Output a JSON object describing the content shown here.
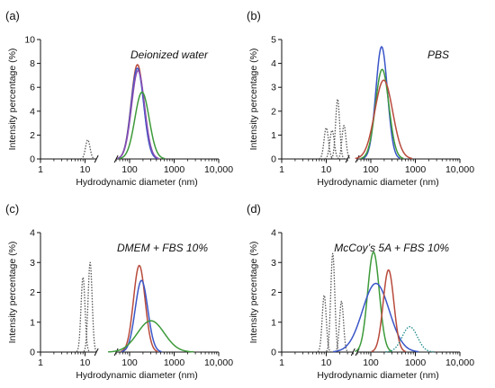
{
  "chart_data": [
    {
      "type": "line",
      "panel_label": "(a)",
      "title": "Deionized water",
      "xlabel": "Hydrodynamic diameter (nm)",
      "ylabel": "Intensity percentage (%)",
      "xscale": "log",
      "xlim": [
        1,
        10000
      ],
      "ylim": [
        0,
        10
      ],
      "xticks": [
        1,
        10,
        100,
        1000,
        10000
      ],
      "xtick_labels": [
        "1",
        "10",
        "100",
        "1000",
        "10,000"
      ],
      "yticks": [
        0,
        2,
        4,
        6,
        8,
        10
      ],
      "ytick_labels": [
        "0",
        "2",
        "4",
        "6",
        "8",
        "10"
      ],
      "broken_x_axis": true,
      "break_between": [
        18,
        50
      ],
      "series": [
        {
          "style": "dotted",
          "color": "#555555",
          "peak_x": 11.5,
          "peak_y": 1.6,
          "width": 0.05
        },
        {
          "style": "solid",
          "color": "#b84a3c",
          "peak_x": 150,
          "peak_y": 7.9,
          "width": 0.14
        },
        {
          "style": "solid",
          "color": "#3a56c8",
          "peak_x": 150,
          "peak_y": 7.6,
          "width": 0.14
        },
        {
          "style": "solid",
          "color": "#8a4fb3",
          "peak_x": 155,
          "peak_y": 7.4,
          "width": 0.145
        },
        {
          "style": "solid",
          "color": "#3d9a3a",
          "peak_x": 190,
          "peak_y": 5.6,
          "width": 0.16
        }
      ]
    },
    {
      "type": "line",
      "panel_label": "(b)",
      "title": "PBS",
      "xlabel": "Hydrodynamic diameter (nm)",
      "ylabel": "Intensity percentage (%)",
      "xscale": "log",
      "xlim": [
        1,
        10000
      ],
      "ylim": [
        0,
        5
      ],
      "xticks": [
        1,
        10,
        100,
        1000,
        10000
      ],
      "xtick_labels": [
        "1",
        "10",
        "100",
        "1000",
        "10,000"
      ],
      "yticks": [
        0,
        1,
        2,
        3,
        4,
        5
      ],
      "ytick_labels": [
        "0",
        "1",
        "2",
        "3",
        "4",
        "5"
      ],
      "broken_x_axis": true,
      "break_between": [
        30,
        50
      ],
      "series": [
        {
          "style": "dotted",
          "color": "#555555",
          "peak_x": 10,
          "peak_y": 1.3,
          "width": 0.05
        },
        {
          "style": "dotted",
          "color": "#555555",
          "peak_x": 13.5,
          "peak_y": 1.2,
          "width": 0.05
        },
        {
          "style": "dotted",
          "color": "#555555",
          "peak_x": 18,
          "peak_y": 2.5,
          "width": 0.045
        },
        {
          "style": "dotted",
          "color": "#555555",
          "peak_x": 25,
          "peak_y": 1.4,
          "width": 0.045
        },
        {
          "style": "solid",
          "color": "#3a56c8",
          "peak_x": 175,
          "peak_y": 4.7,
          "width": 0.13
        },
        {
          "style": "solid",
          "color": "#3d9a3a",
          "peak_x": 180,
          "peak_y": 3.75,
          "width": 0.15
        },
        {
          "style": "solid",
          "color": "#b84a3c",
          "peak_x": 195,
          "peak_y": 3.3,
          "width": 0.2
        }
      ]
    },
    {
      "type": "line",
      "panel_label": "(c)",
      "title": "DMEM + FBS 10%",
      "xlabel": "Hydrodynamic diameter (nm)",
      "ylabel": "Intensity percentage (%)",
      "xscale": "log",
      "xlim": [
        1,
        10000
      ],
      "ylim": [
        0,
        4
      ],
      "xticks": [
        1,
        10,
        100,
        1000,
        10000
      ],
      "xtick_labels": [
        "1",
        "10",
        "100",
        "1000",
        "10,000"
      ],
      "yticks": [
        0,
        1,
        2,
        3,
        4
      ],
      "ytick_labels": [
        "0",
        "1",
        "2",
        "3",
        "4"
      ],
      "broken_x_axis": true,
      "break_between": [
        18,
        50
      ],
      "series": [
        {
          "style": "dotted",
          "color": "#555555",
          "peak_x": 9,
          "peak_y": 2.5,
          "width": 0.045
        },
        {
          "style": "dotted",
          "color": "#555555",
          "peak_x": 13,
          "peak_y": 3.0,
          "width": 0.045
        },
        {
          "style": "solid",
          "color": "#b84a3c",
          "peak_x": 165,
          "peak_y": 2.9,
          "width": 0.13
        },
        {
          "style": "solid",
          "color": "#3a56c8",
          "peak_x": 185,
          "peak_y": 2.4,
          "width": 0.14
        },
        {
          "style": "solid",
          "color": "#3d9a3a",
          "peak_x": 300,
          "peak_y": 1.05,
          "width": 0.3
        }
      ]
    },
    {
      "type": "line",
      "panel_label": "(d)",
      "title": "McCoy’s 5A + FBS 10%",
      "xlabel": "Hydrodynamic diameter (nm)",
      "ylabel": "Intensity percentage (%)",
      "xscale": "log",
      "xlim": [
        1,
        10000
      ],
      "ylim": [
        0,
        4
      ],
      "xticks": [
        1,
        10,
        100,
        1000,
        10000
      ],
      "xtick_labels": [
        "1",
        "10",
        "100",
        "1000",
        "10,000"
      ],
      "yticks": [
        0,
        1,
        2,
        3,
        4
      ],
      "ytick_labels": [
        "0",
        "1",
        "2",
        "3",
        "4"
      ],
      "broken_x_axis": true,
      "break_between": [
        40,
        50
      ],
      "series": [
        {
          "style": "dotted",
          "color": "#555555",
          "peak_x": 9,
          "peak_y": 1.9,
          "width": 0.045
        },
        {
          "style": "dotted",
          "color": "#555555",
          "peak_x": 14,
          "peak_y": 3.3,
          "width": 0.045
        },
        {
          "style": "dotted",
          "color": "#555555",
          "peak_x": 22,
          "peak_y": 1.7,
          "width": 0.045
        },
        {
          "style": "solid",
          "color": "#3d9a3a",
          "peak_x": 115,
          "peak_y": 3.35,
          "width": 0.13
        },
        {
          "style": "solid",
          "color": "#3a56c8",
          "peak_x": 130,
          "peak_y": 2.3,
          "width": 0.3
        },
        {
          "style": "solid",
          "color": "#b84a3c",
          "peak_x": 250,
          "peak_y": 2.75,
          "width": 0.12
        },
        {
          "style": "dotted",
          "color": "#1f8a8a",
          "peak_x": 750,
          "peak_y": 0.85,
          "width": 0.17
        }
      ]
    }
  ]
}
